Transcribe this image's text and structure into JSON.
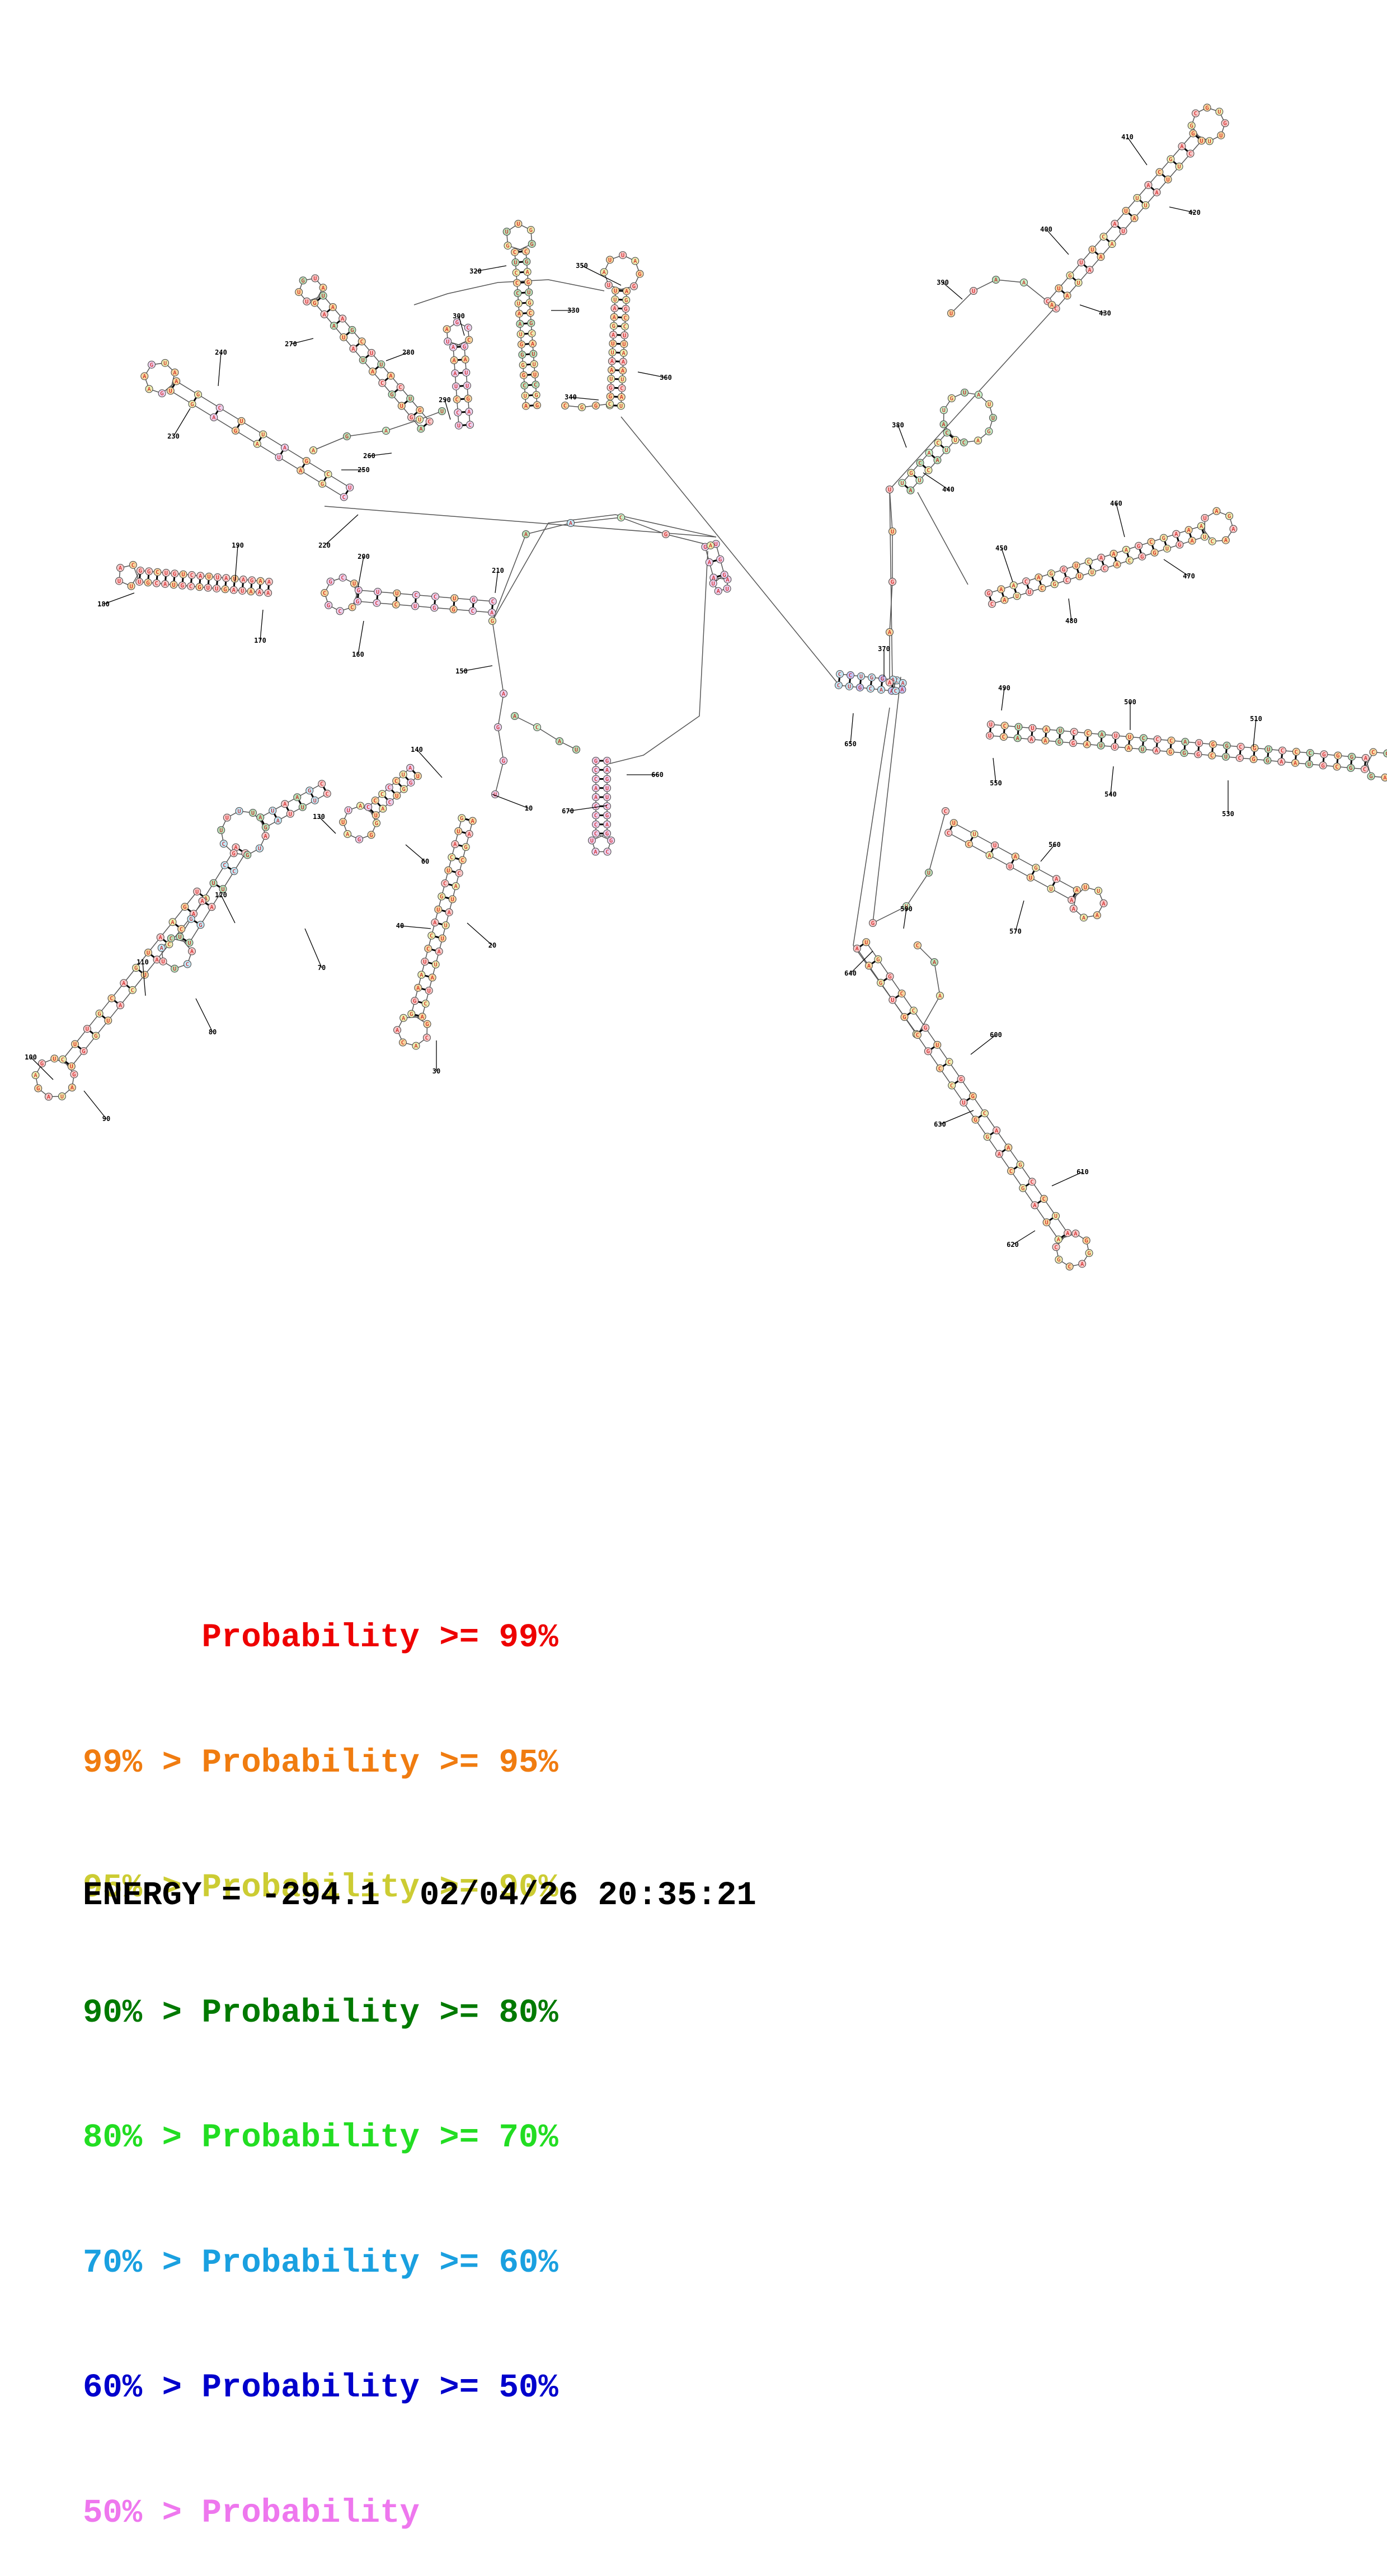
{
  "colors": {
    "p99": "#ee0000",
    "p95": "#f07c10",
    "p90": "#cccc33",
    "p80": "#007a00",
    "p70": "#22dd22",
    "p60": "#1aa0e0",
    "p50": "#0000cc",
    "plow": "#ee77ee"
  },
  "legend": [
    {
      "prefix": "      ",
      "label": "Probability >= 99%",
      "color_key": "p99"
    },
    {
      "prefix": "99% > ",
      "label": "Probability >= 95%",
      "color_key": "p95"
    },
    {
      "prefix": "95% > ",
      "label": "Probability >= 90%",
      "color_key": "p90"
    },
    {
      "prefix": "90% > ",
      "label": "Probability >= 80%",
      "color_key": "p80"
    },
    {
      "prefix": "80% > ",
      "label": "Probability >= 70%",
      "color_key": "p70"
    },
    {
      "prefix": "70% > ",
      "label": "Probability >= 60%",
      "color_key": "p60"
    },
    {
      "prefix": "60% > ",
      "label": "Probability >= 50%",
      "color_key": "p50"
    },
    {
      "prefix": "50% > ",
      "label": "Probability",
      "color_key": "plow"
    }
  ],
  "energy": "ENERGY = -294.1  02/04/26 20:35:21",
  "position_labels": [
    "10",
    "20",
    "30",
    "40",
    "60",
    "70",
    "80",
    "90",
    "100",
    "110",
    "120",
    "130",
    "140",
    "150",
    "160",
    "170",
    "180",
    "190",
    "200",
    "210",
    "220",
    "230",
    "240",
    "250",
    "260",
    "270",
    "280",
    "290",
    "300",
    "320",
    "330",
    "340",
    "350",
    "360",
    "370",
    "380",
    "390",
    "400",
    "410",
    "420",
    "430",
    "440",
    "450",
    "460",
    "470",
    "480",
    "490",
    "500",
    "510",
    "530",
    "540",
    "550",
    "560",
    "570",
    "590",
    "600",
    "610",
    "620",
    "630",
    "640",
    "650",
    "660",
    "670"
  ],
  "letters": [
    "A",
    "U",
    "G",
    "C"
  ]
}
